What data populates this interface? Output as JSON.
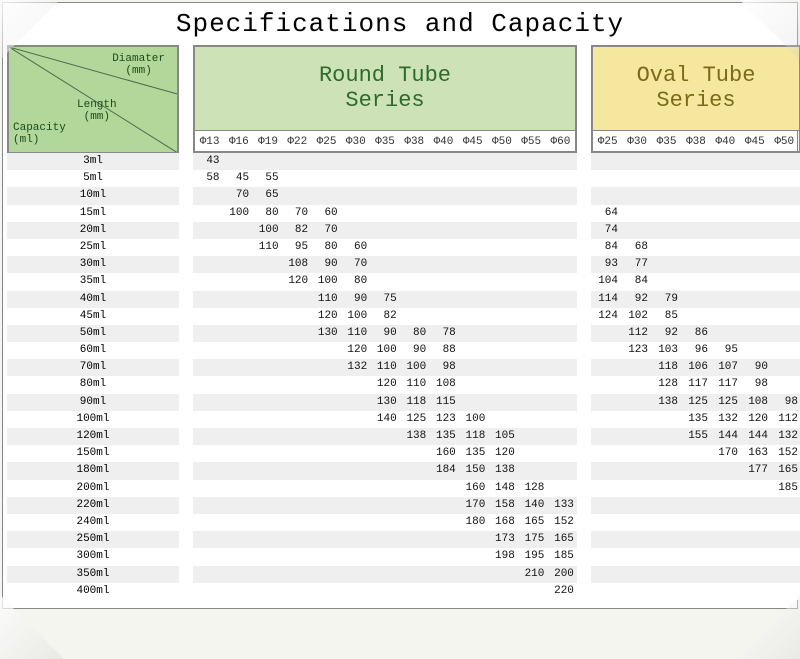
{
  "title": "Specifications and Capacity",
  "legend": {
    "diameter": "Diamater\n(mm)",
    "length": "Length\n(mm)",
    "capacity": "Capacity\n(ml)"
  },
  "round": {
    "title": "Round Tube\nSeries",
    "header_bg": "#cde3b7",
    "header_text_color": "#2d6a2d",
    "diameters": [
      "Φ13",
      "Φ16",
      "Φ19",
      "Φ22",
      "Φ25",
      "Φ30",
      "Φ35",
      "Φ38",
      "Φ40",
      "Φ45",
      "Φ50",
      "Φ55",
      "Φ60"
    ]
  },
  "oval": {
    "title": "Oval Tube\nSeries",
    "header_bg": "#f5e79e",
    "header_text_color": "#7a6a1a",
    "diameters": [
      "Φ25",
      "Φ30",
      "Φ35",
      "Φ38",
      "Φ40",
      "Φ45",
      "Φ50"
    ]
  },
  "capacities": [
    "3ml",
    "5ml",
    "10ml",
    "15ml",
    "20ml",
    "25ml",
    "30ml",
    "35ml",
    "40ml",
    "45ml",
    "50ml",
    "60ml",
    "70ml",
    "80ml",
    "90ml",
    "100ml",
    "120ml",
    "150ml",
    "180ml",
    "200ml",
    "220ml",
    "240ml",
    "250ml",
    "300ml",
    "350ml",
    "400ml"
  ],
  "round_data": [
    [
      43,
      null,
      null,
      null,
      null,
      null,
      null,
      null,
      null,
      null,
      null,
      null,
      null
    ],
    [
      58,
      45,
      55,
      null,
      null,
      null,
      null,
      null,
      null,
      null,
      null,
      null,
      null
    ],
    [
      null,
      70,
      65,
      null,
      null,
      null,
      null,
      null,
      null,
      null,
      null,
      null,
      null
    ],
    [
      null,
      100,
      80,
      70,
      60,
      null,
      null,
      null,
      null,
      null,
      null,
      null,
      null
    ],
    [
      null,
      null,
      100,
      82,
      70,
      null,
      null,
      null,
      null,
      null,
      null,
      null,
      null
    ],
    [
      null,
      null,
      110,
      95,
      80,
      60,
      null,
      null,
      null,
      null,
      null,
      null,
      null
    ],
    [
      null,
      null,
      null,
      108,
      90,
      70,
      null,
      null,
      null,
      null,
      null,
      null,
      null
    ],
    [
      null,
      null,
      null,
      120,
      100,
      80,
      null,
      null,
      null,
      null,
      null,
      null,
      null
    ],
    [
      null,
      null,
      null,
      null,
      110,
      90,
      75,
      null,
      null,
      null,
      null,
      null,
      null
    ],
    [
      null,
      null,
      null,
      null,
      120,
      100,
      82,
      null,
      null,
      null,
      null,
      null,
      null
    ],
    [
      null,
      null,
      null,
      null,
      130,
      110,
      90,
      80,
      78,
      null,
      null,
      null,
      null
    ],
    [
      null,
      null,
      null,
      null,
      null,
      120,
      100,
      90,
      88,
      null,
      null,
      null,
      null
    ],
    [
      null,
      null,
      null,
      null,
      null,
      132,
      110,
      100,
      98,
      null,
      null,
      null,
      null
    ],
    [
      null,
      null,
      null,
      null,
      null,
      null,
      120,
      110,
      108,
      null,
      null,
      null,
      null
    ],
    [
      null,
      null,
      null,
      null,
      null,
      null,
      130,
      118,
      115,
      null,
      null,
      null,
      null
    ],
    [
      null,
      null,
      null,
      null,
      null,
      null,
      140,
      125,
      123,
      100,
      null,
      null,
      null
    ],
    [
      null,
      null,
      null,
      null,
      null,
      null,
      null,
      138,
      135,
      118,
      105,
      null,
      null
    ],
    [
      null,
      null,
      null,
      null,
      null,
      null,
      null,
      null,
      160,
      135,
      120,
      null,
      null
    ],
    [
      null,
      null,
      null,
      null,
      null,
      null,
      null,
      null,
      184,
      150,
      138,
      null,
      null
    ],
    [
      null,
      null,
      null,
      null,
      null,
      null,
      null,
      null,
      null,
      160,
      148,
      128,
      null
    ],
    [
      null,
      null,
      null,
      null,
      null,
      null,
      null,
      null,
      null,
      170,
      158,
      140,
      133
    ],
    [
      null,
      null,
      null,
      null,
      null,
      null,
      null,
      null,
      null,
      180,
      168,
      165,
      152
    ],
    [
      null,
      null,
      null,
      null,
      null,
      null,
      null,
      null,
      null,
      null,
      173,
      175,
      165
    ],
    [
      null,
      null,
      null,
      null,
      null,
      null,
      null,
      null,
      null,
      null,
      198,
      195,
      185
    ],
    [
      null,
      null,
      null,
      null,
      null,
      null,
      null,
      null,
      null,
      null,
      null,
      210,
      200
    ],
    [
      null,
      null,
      null,
      null,
      null,
      null,
      null,
      null,
      null,
      null,
      null,
      null,
      220
    ]
  ],
  "oval_data": [
    [
      null,
      null,
      null,
      null,
      null,
      null,
      null
    ],
    [
      null,
      null,
      null,
      null,
      null,
      null,
      null
    ],
    [
      null,
      null,
      null,
      null,
      null,
      null,
      null
    ],
    [
      64,
      null,
      null,
      null,
      null,
      null,
      null
    ],
    [
      74,
      null,
      null,
      null,
      null,
      null,
      null
    ],
    [
      84,
      68,
      null,
      null,
      null,
      null,
      null
    ],
    [
      93,
      77,
      null,
      null,
      null,
      null,
      null
    ],
    [
      104,
      84,
      null,
      null,
      null,
      null,
      null
    ],
    [
      114,
      92,
      79,
      null,
      null,
      null,
      null
    ],
    [
      124,
      102,
      85,
      null,
      null,
      null,
      null
    ],
    [
      null,
      112,
      92,
      86,
      null,
      null,
      null
    ],
    [
      null,
      123,
      103,
      96,
      95,
      null,
      null
    ],
    [
      null,
      null,
      118,
      106,
      107,
      90,
      null
    ],
    [
      null,
      null,
      128,
      117,
      117,
      98,
      null
    ],
    [
      null,
      null,
      138,
      125,
      125,
      108,
      98
    ],
    [
      null,
      null,
      null,
      135,
      132,
      120,
      112
    ],
    [
      null,
      null,
      null,
      155,
      144,
      144,
      132
    ],
    [
      null,
      null,
      null,
      null,
      170,
      163,
      152
    ],
    [
      null,
      null,
      null,
      null,
      null,
      177,
      165
    ],
    [
      null,
      null,
      null,
      null,
      null,
      null,
      185
    ],
    [
      null,
      null,
      null,
      null,
      null,
      null,
      null
    ],
    [
      null,
      null,
      null,
      null,
      null,
      null,
      null
    ],
    [
      null,
      null,
      null,
      null,
      null,
      null,
      null
    ],
    [
      null,
      null,
      null,
      null,
      null,
      null,
      null
    ],
    [
      null,
      null,
      null,
      null,
      null,
      null,
      null
    ],
    [
      null,
      null,
      null,
      null,
      null,
      null,
      null
    ]
  ],
  "colors": {
    "legend_bg": "#b2d79a",
    "row_alt_bg": "#efefef",
    "row_bg": "#ffffff",
    "border": "#888888"
  }
}
